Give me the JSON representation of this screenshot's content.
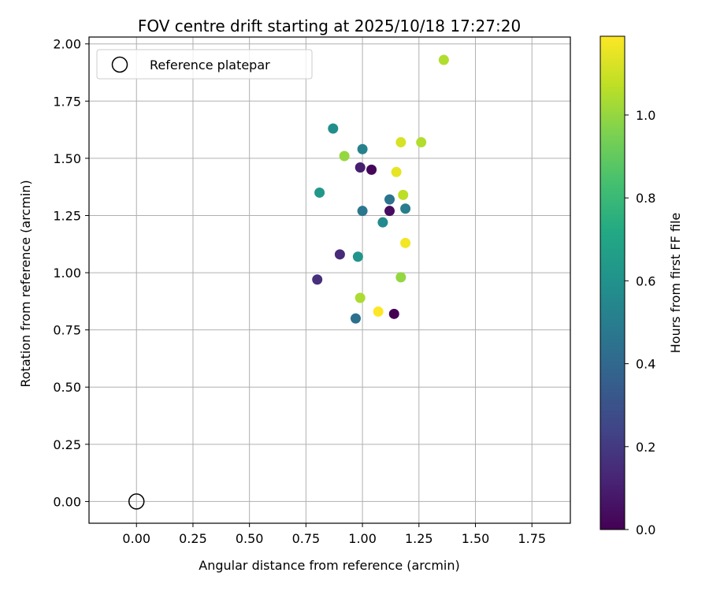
{
  "chart_data": {
    "type": "scatter",
    "title": "FOV centre drift starting at 2025/10/18 17:27:20",
    "xlabel": "Angular distance from reference (arcmin)",
    "ylabel": "Rotation from reference (arcmin)",
    "xlim": [
      -0.21,
      1.92
    ],
    "ylim": [
      -0.095,
      2.03
    ],
    "xticks": [
      0.0,
      0.25,
      0.5,
      0.75,
      1.0,
      1.25,
      1.5,
      1.75
    ],
    "xtick_labels": [
      "0.00",
      "0.25",
      "0.50",
      "0.75",
      "1.00",
      "1.25",
      "1.50",
      "1.75"
    ],
    "yticks": [
      0.0,
      0.25,
      0.5,
      0.75,
      1.0,
      1.25,
      1.5,
      1.75,
      2.0
    ],
    "ytick_labels": [
      "0.00",
      "0.25",
      "0.50",
      "0.75",
      "1.00",
      "1.25",
      "1.50",
      "1.75",
      "2.00"
    ],
    "grid": true,
    "legend": {
      "position": "top-left",
      "entries": [
        "Reference platepar"
      ]
    },
    "reference_point": {
      "x": 0.0,
      "y": 0.0,
      "label": "Reference platepar"
    },
    "colorbar": {
      "label": "Hours from first FF file",
      "colormap": "viridis",
      "range": [
        0.0,
        1.19
      ],
      "ticks": [
        0.0,
        0.2,
        0.4,
        0.6,
        0.8,
        1.0
      ],
      "tick_labels": [
        "0.0",
        "0.2",
        "0.4",
        "0.6",
        "0.8",
        "1.0"
      ]
    },
    "points": [
      {
        "x": 1.14,
        "y": 0.82,
        "hours": 0.0
      },
      {
        "x": 1.04,
        "y": 1.45,
        "hours": 0.02
      },
      {
        "x": 1.12,
        "y": 1.27,
        "hours": 0.04
      },
      {
        "x": 0.99,
        "y": 1.46,
        "hours": 0.1
      },
      {
        "x": 0.9,
        "y": 1.08,
        "hours": 0.14
      },
      {
        "x": 0.8,
        "y": 0.97,
        "hours": 0.16
      },
      {
        "x": 0.97,
        "y": 0.8,
        "hours": 0.44
      },
      {
        "x": 1.12,
        "y": 1.32,
        "hours": 0.45
      },
      {
        "x": 1.0,
        "y": 1.27,
        "hours": 0.47
      },
      {
        "x": 1.19,
        "y": 1.28,
        "hours": 0.5
      },
      {
        "x": 1.0,
        "y": 1.54,
        "hours": 0.52
      },
      {
        "x": 1.09,
        "y": 1.22,
        "hours": 0.56
      },
      {
        "x": 0.87,
        "y": 1.63,
        "hours": 0.58
      },
      {
        "x": 0.98,
        "y": 1.07,
        "hours": 0.61
      },
      {
        "x": 0.81,
        "y": 1.35,
        "hours": 0.63
      },
      {
        "x": 0.92,
        "y": 1.51,
        "hours": 1.0
      },
      {
        "x": 1.17,
        "y": 0.98,
        "hours": 1.0
      },
      {
        "x": 0.99,
        "y": 0.89,
        "hours": 1.04
      },
      {
        "x": 1.18,
        "y": 1.34,
        "hours": 1.07
      },
      {
        "x": 1.26,
        "y": 1.57,
        "hours": 1.05
      },
      {
        "x": 1.36,
        "y": 1.93,
        "hours": 1.05
      },
      {
        "x": 1.17,
        "y": 1.57,
        "hours": 1.12
      },
      {
        "x": 1.15,
        "y": 1.44,
        "hours": 1.15
      },
      {
        "x": 1.19,
        "y": 1.13,
        "hours": 1.17
      },
      {
        "x": 1.07,
        "y": 0.83,
        "hours": 1.19
      }
    ]
  }
}
